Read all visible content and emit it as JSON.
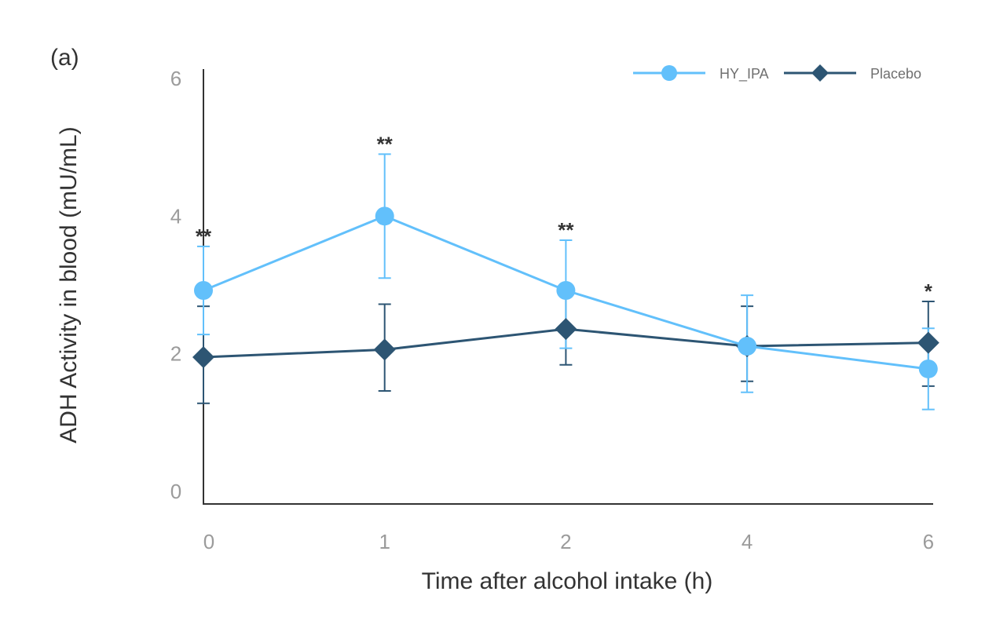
{
  "chart_data": {
    "type": "line",
    "panel_label": "(a)",
    "title": "",
    "xlabel": "Time after alcohol intake (h)",
    "ylabel": "ADH Activity in blood (mU/mL)",
    "categories": [
      "0",
      "1",
      "2",
      "4",
      "6"
    ],
    "yticks": [
      0,
      2,
      4,
      6
    ],
    "ylim": [
      0,
      6
    ],
    "grid": false,
    "legend_position": "top-right",
    "series": [
      {
        "name": "HY_IPA",
        "color": "#62C0FB",
        "marker": "circle",
        "values": [
          2.92,
          4.0,
          2.92,
          2.11,
          1.78
        ],
        "error_upper": [
          3.56,
          4.9,
          3.65,
          2.85,
          2.37
        ],
        "error_lower": [
          2.28,
          3.1,
          2.08,
          1.44,
          1.19
        ]
      },
      {
        "name": "Placebo",
        "color": "#2D5573",
        "marker": "diamond",
        "values": [
          1.95,
          2.06,
          2.36,
          2.11,
          2.16
        ],
        "error_upper": [
          2.69,
          2.72,
          2.88,
          2.69,
          2.76
        ],
        "error_lower": [
          1.28,
          1.46,
          1.84,
          1.6,
          1.53
        ]
      }
    ],
    "annotations": [
      {
        "category": "0",
        "text": "**"
      },
      {
        "category": "1",
        "text": "**"
      },
      {
        "category": "2",
        "text": "**"
      },
      {
        "category": "6",
        "text": "*"
      }
    ]
  }
}
